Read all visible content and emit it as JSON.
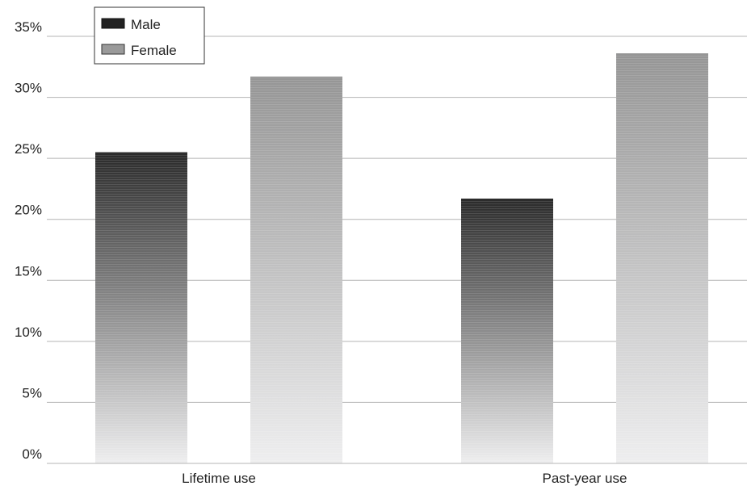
{
  "chart_data": {
    "type": "bar",
    "categories": [
      "Lifetime use",
      "Past-year use"
    ],
    "series": [
      {
        "name": "Male",
        "values": [
          25.5,
          21.7
        ]
      },
      {
        "name": "Female",
        "values": [
          31.7,
          33.6
        ]
      }
    ],
    "ylim": [
      0,
      35
    ],
    "yticks": [
      "0%",
      "5%",
      "10%",
      "15%",
      "20%",
      "25%",
      "30%",
      "35%"
    ],
    "grid": true,
    "legend": "top-left",
    "colors": {
      "male_top": "#2a2a2a",
      "female_top": "#959595",
      "bar_bottom": "#eeeeef",
      "grid": "#b4b4b4",
      "legend_male": "#222222",
      "legend_female": "#9a9a9a"
    }
  }
}
